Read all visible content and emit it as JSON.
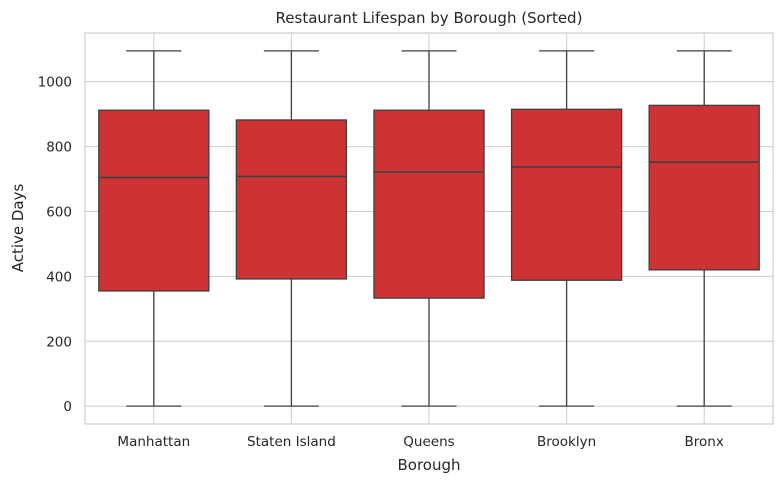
{
  "chart_data": {
    "type": "box",
    "title": "Restaurant Lifespan by Borough (Sorted)",
    "xlabel": "Borough",
    "ylabel": "Active Days",
    "categories": [
      "Manhattan",
      "Staten Island",
      "Queens",
      "Brooklyn",
      "Bronx"
    ],
    "boxes": [
      {
        "category": "Manhattan",
        "min": 0,
        "q1": 355,
        "median": 705,
        "q3": 912,
        "max": 1095
      },
      {
        "category": "Staten Island",
        "min": 0,
        "q1": 392,
        "median": 708,
        "q3": 882,
        "max": 1095
      },
      {
        "category": "Queens",
        "min": 0,
        "q1": 333,
        "median": 722,
        "q3": 912,
        "max": 1095
      },
      {
        "category": "Brooklyn",
        "min": 0,
        "q1": 388,
        "median": 737,
        "q3": 915,
        "max": 1095
      },
      {
        "category": "Bronx",
        "min": 0,
        "q1": 420,
        "median": 752,
        "q3": 927,
        "max": 1095
      }
    ],
    "ylim": [
      -55,
      1150
    ],
    "yticks": [
      0,
      200,
      400,
      600,
      800,
      1000
    ],
    "grid": true,
    "colors": {
      "box_fill": "#cd3235",
      "line": "#3f3f3f",
      "grid": "#cccccc",
      "frame": "#cccccc"
    }
  }
}
